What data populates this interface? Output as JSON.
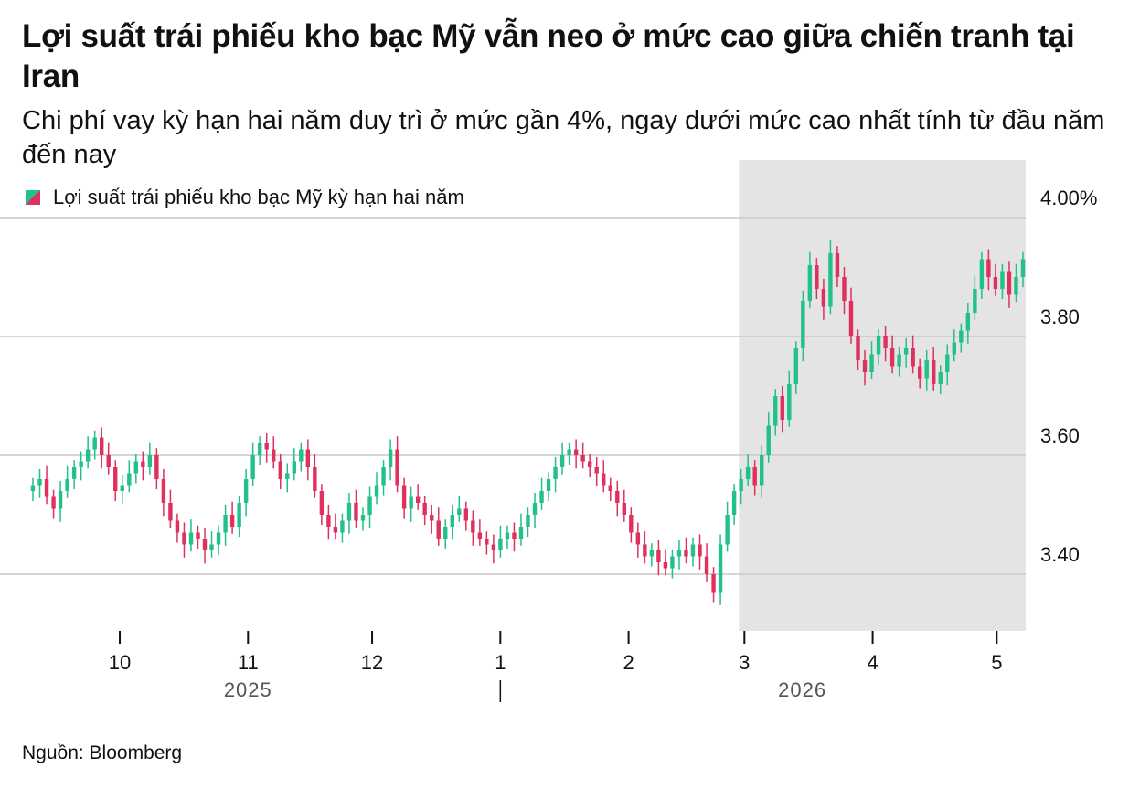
{
  "header": {
    "title": "Lợi suất trái phiếu kho bạc Mỹ vẫn neo ở mức cao giữa chiến tranh tại Iran",
    "subtitle": "Chi phí vay kỳ hạn hai năm duy trì ở mức gần 4%, ngay dưới mức cao nhất tính từ đầu năm đến nay"
  },
  "legend": {
    "label": "Lợi suất trái phiếu kho bạc Mỹ kỳ hạn hai năm"
  },
  "source": "Nguồn: Bloomberg",
  "colors": {
    "up": "#22c08a",
    "down": "#e0305d",
    "shade": "#e4e4e4",
    "grid": "#c9c9c9"
  },
  "chart_data": {
    "type": "candlestick",
    "y_axis": {
      "min": 3.3,
      "max": 4.0,
      "position": "right",
      "ticks": [
        {
          "value": 4.0,
          "label": "4.00%"
        },
        {
          "value": 3.8,
          "label": "3.80"
        },
        {
          "value": 3.6,
          "label": "3.60"
        },
        {
          "value": 3.4,
          "label": "3.40"
        }
      ]
    },
    "x_axis": {
      "start": "2025-09-10",
      "end": "2026-05-08",
      "ticks": [
        {
          "date": "2025-10-01",
          "label": "10"
        },
        {
          "date": "2025-11-01",
          "label": "11"
        },
        {
          "date": "2025-12-01",
          "label": "12"
        },
        {
          "date": "2026-01-01",
          "label": "1"
        },
        {
          "date": "2026-02-01",
          "label": "2"
        },
        {
          "date": "2026-03-01",
          "label": "3"
        },
        {
          "date": "2026-04-01",
          "label": "4"
        },
        {
          "date": "2026-05-01",
          "label": "5"
        }
      ],
      "years": [
        {
          "label": "2025",
          "date": "2025-11-01"
        },
        {
          "label": "2026",
          "date": "2026-03-15"
        }
      ],
      "year_divider": "2026-01-01"
    },
    "shaded_region": {
      "from": "2026-03-01",
      "to": "2026-05-08"
    },
    "closes": [
      3.55,
      3.56,
      3.53,
      3.51,
      3.54,
      3.56,
      3.58,
      3.59,
      3.61,
      3.63,
      3.6,
      3.58,
      3.54,
      3.55,
      3.57,
      3.59,
      3.58,
      3.6,
      3.56,
      3.52,
      3.49,
      3.47,
      3.45,
      3.47,
      3.46,
      3.44,
      3.45,
      3.47,
      3.5,
      3.48,
      3.52,
      3.56,
      3.6,
      3.62,
      3.61,
      3.59,
      3.56,
      3.57,
      3.59,
      3.61,
      3.58,
      3.54,
      3.5,
      3.48,
      3.47,
      3.49,
      3.52,
      3.49,
      3.5,
      3.53,
      3.55,
      3.58,
      3.61,
      3.55,
      3.51,
      3.53,
      3.52,
      3.5,
      3.49,
      3.46,
      3.48,
      3.5,
      3.51,
      3.49,
      3.47,
      3.46,
      3.45,
      3.44,
      3.46,
      3.47,
      3.46,
      3.48,
      3.5,
      3.52,
      3.54,
      3.56,
      3.58,
      3.6,
      3.61,
      3.6,
      3.59,
      3.58,
      3.57,
      3.55,
      3.54,
      3.52,
      3.5,
      3.47,
      3.45,
      3.43,
      3.44,
      3.42,
      3.41,
      3.43,
      3.44,
      3.43,
      3.45,
      3.43,
      3.4,
      3.37,
      3.45,
      3.5,
      3.54,
      3.56,
      3.58,
      3.55,
      3.6,
      3.65,
      3.7,
      3.66,
      3.72,
      3.78,
      3.86,
      3.92,
      3.88,
      3.85,
      3.94,
      3.9,
      3.86,
      3.8,
      3.76,
      3.74,
      3.77,
      3.8,
      3.78,
      3.75,
      3.77,
      3.78,
      3.75,
      3.73,
      3.76,
      3.72,
      3.74,
      3.77,
      3.79,
      3.81,
      3.84,
      3.88,
      3.93,
      3.9,
      3.88,
      3.91,
      3.87,
      3.9,
      3.93
    ]
  }
}
